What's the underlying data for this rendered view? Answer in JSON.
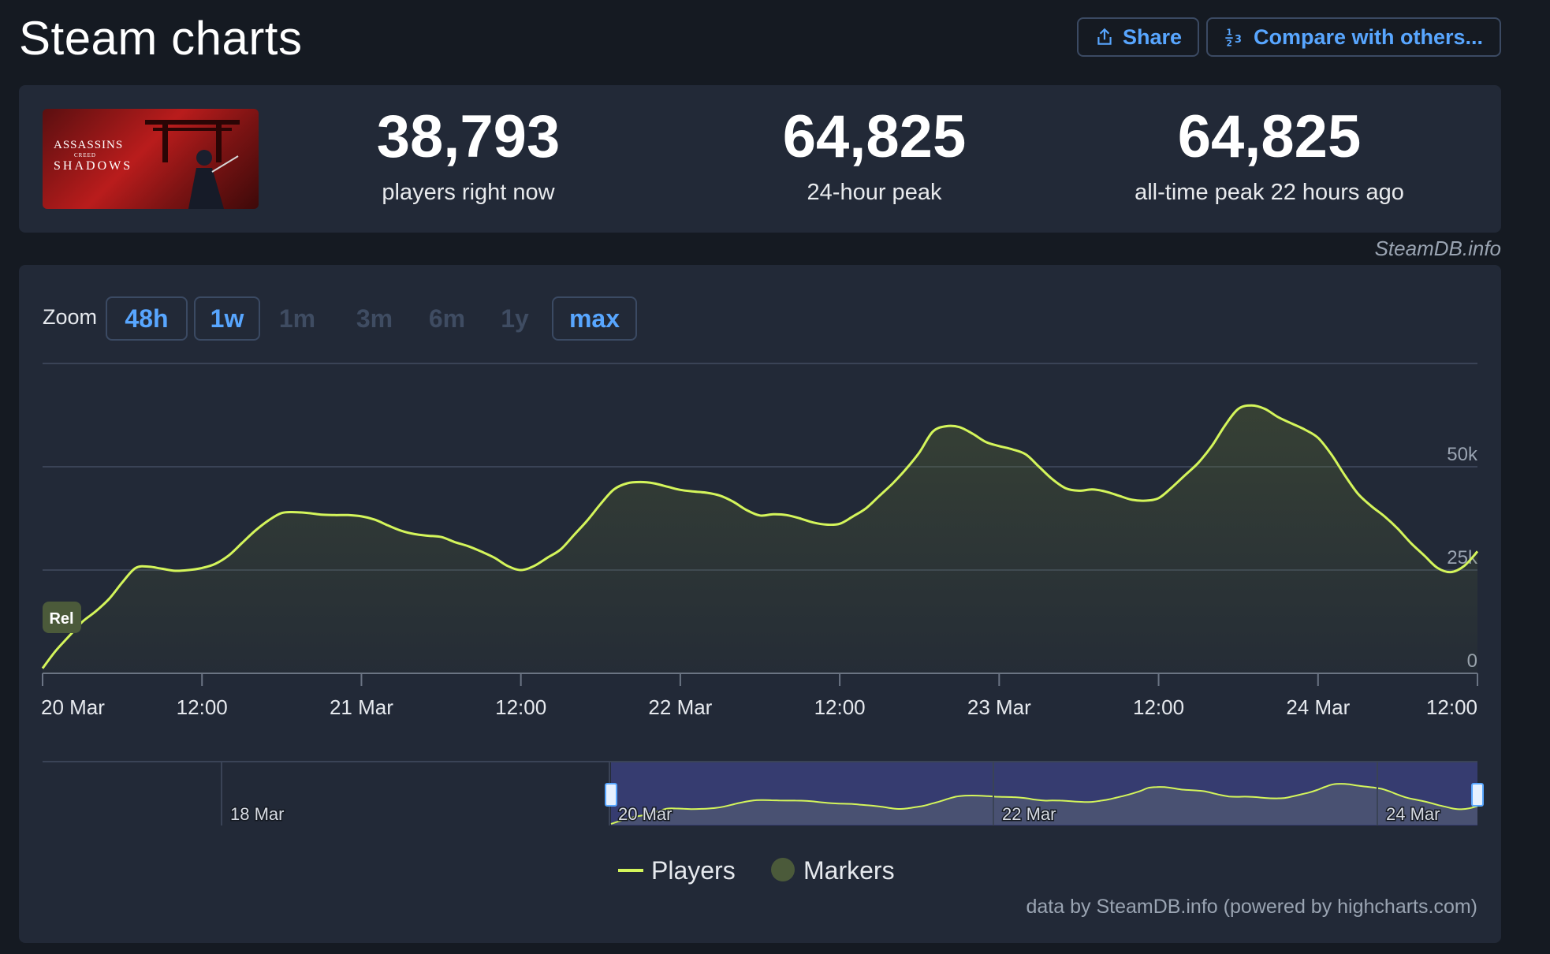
{
  "header": {
    "title": "Steam charts",
    "share_label": "Share",
    "compare_label": "Compare with others..."
  },
  "stats": {
    "game_logo_line1": "ASSASSINS",
    "game_logo_line2": "CREED",
    "game_logo_line3": "SHADOWS",
    "current": {
      "value": "38,793",
      "label": "players right now"
    },
    "peak24": {
      "value": "64,825",
      "label": "24-hour peak"
    },
    "alltime": {
      "value": "64,825",
      "label": "all-time peak 22 hours ago"
    }
  },
  "credit": "SteamDB.info",
  "zoom": {
    "label": "Zoom",
    "options": [
      "48h",
      "1w",
      "1m",
      "3m",
      "6m",
      "1y",
      "max"
    ],
    "enabled": [
      "48h",
      "1w",
      "max"
    ]
  },
  "colors": {
    "line": "#d4f55b",
    "navigator_range": "#3a3f7a",
    "marker": "#4b5a3a",
    "accent": "#58a6ff"
  },
  "marker_label": "Rel",
  "footer": "data by SteamDB.info (powered by highcharts.com)",
  "chart_data": {
    "type": "area",
    "series": [
      {
        "name": "Players",
        "x": [
          0,
          1,
          2,
          3,
          4,
          5,
          6,
          7,
          8,
          9,
          10,
          11,
          12,
          13,
          14,
          15,
          16,
          17,
          18,
          19,
          20,
          21,
          22,
          23,
          24,
          25,
          26,
          27,
          28,
          29,
          30,
          31,
          32,
          33,
          34,
          35,
          36,
          37,
          38,
          39,
          40,
          41,
          42,
          43,
          44,
          45,
          46,
          47,
          48,
          49,
          50,
          51,
          52,
          53,
          54,
          55,
          56,
          57,
          58,
          59,
          60,
          61,
          62,
          63,
          64,
          65,
          66,
          67,
          68,
          69,
          70,
          71,
          72,
          73,
          74,
          75,
          76,
          77,
          78,
          79,
          80,
          81,
          82,
          83,
          84,
          85,
          86,
          87,
          88,
          89,
          90,
          91,
          92,
          93,
          94,
          95,
          96,
          97,
          98,
          99,
          100,
          101,
          102,
          103,
          104,
          105,
          106,
          107,
          108
        ],
        "values": [
          1200,
          5500,
          9000,
          12500,
          15000,
          18000,
          22000,
          25500,
          25800,
          25300,
          24800,
          25000,
          25500,
          26500,
          28500,
          31500,
          34500,
          37000,
          38800,
          39000,
          38800,
          38400,
          38300,
          38300,
          38000,
          37200,
          35800,
          34500,
          33700,
          33300,
          33000,
          31800,
          30800,
          29500,
          28000,
          26000,
          25000,
          26000,
          28000,
          30000,
          33500,
          37000,
          41000,
          44500,
          46000,
          46300,
          46000,
          45200,
          44400,
          44000,
          43700,
          43000,
          41500,
          39500,
          38200,
          38500,
          38300,
          37500,
          36500,
          36000,
          36200,
          38000,
          40000,
          43000,
          46000,
          49500,
          53500,
          58500,
          59800,
          59600,
          58000,
          56000,
          55000,
          54200,
          53000,
          50000,
          47000,
          44800,
          44200,
          44500,
          44000,
          43000,
          42000,
          41800,
          42400,
          45000,
          48000,
          51000,
          55000,
          60000,
          64000,
          64825,
          64000,
          62000,
          60500,
          59000,
          57000,
          53000,
          48000,
          43500,
          40500,
          38000,
          35000,
          31500,
          28500,
          25500,
          24500,
          26000,
          29500
        ]
      }
    ],
    "x_ticks": [
      "20 Mar",
      "12:00",
      "21 Mar",
      "12:00",
      "22 Mar",
      "12:00",
      "23 Mar",
      "12:00",
      "24 Mar",
      "12:00"
    ],
    "y_ticks": [
      "0",
      "25k",
      "50k"
    ],
    "ylim": [
      0,
      75000
    ],
    "grid": true,
    "navigator_ticks": [
      "18 Mar",
      "20 Mar",
      "22 Mar",
      "24 Mar"
    ],
    "legend": [
      "Players",
      "Markers"
    ],
    "legend_position": "bottom-center"
  }
}
